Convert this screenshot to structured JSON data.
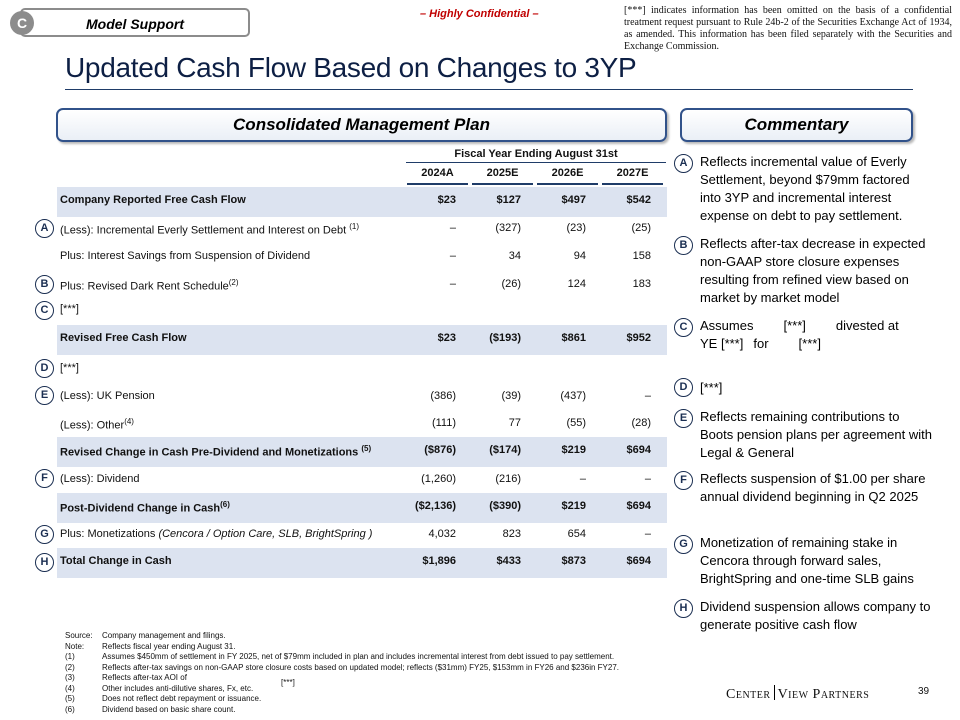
{
  "header": {
    "tab_letter": "C",
    "tab_label": "Model Support",
    "confidential": "– Highly Confidential –",
    "disclaimer": "[***] indicates information has been omitted on the basis of a confidential treatment request pursuant to Rule 24b-2 of the Securities Exchange Act of 1934, as amended. This information has been filed separately with the Securities and Exchange Commission."
  },
  "title": "Updated Cash Flow Based on Changes to 3YP",
  "plan": {
    "section_title": "Consolidated Management Plan",
    "fiscal_header": "Fiscal Year Ending August 31st",
    "columns": [
      "2024A",
      "2025E",
      "2026E",
      "2027E"
    ],
    "rows": [
      {
        "marker": "",
        "label": "Company Reported Free Cash Flow",
        "sup": "",
        "values": [
          "$23",
          "$127",
          "$497",
          "$542"
        ]
      },
      {
        "marker": "A",
        "label": "(Less): Incremental Everly Settlement and Interest on Debt",
        "sup": "(1)",
        "values": [
          "–",
          "(327)",
          "(23)",
          "(25)"
        ]
      },
      {
        "marker": "",
        "label": "Plus: Interest Savings from Suspension of Dividend",
        "sup": "",
        "values": [
          "–",
          "34",
          "94",
          "158"
        ]
      },
      {
        "marker": "B",
        "label": "Plus: Revised Dark Rent Schedule",
        "sup": "(2)",
        "values": [
          "–",
          "(26)",
          "124",
          "183"
        ]
      },
      {
        "marker": "C",
        "label": "[***]",
        "sup": "",
        "values": [
          "",
          "",
          "",
          ""
        ]
      },
      {
        "marker": "",
        "label": "Revised Free Cash Flow",
        "sup": "",
        "values": [
          "$23",
          "($193)",
          "$861",
          "$952"
        ]
      },
      {
        "marker": "D",
        "label": "[***]",
        "sup": "",
        "values": [
          "",
          "",
          "",
          ""
        ]
      },
      {
        "marker": "E",
        "label": "(Less): UK Pension",
        "sup": "",
        "values": [
          "(386)",
          "(39)",
          "(437)",
          "–"
        ]
      },
      {
        "marker": "",
        "label": "(Less): Other",
        "sup": "(4)",
        "values": [
          "(111)",
          "77",
          "(55)",
          "(28)"
        ]
      },
      {
        "marker": "",
        "label": "Revised Change in Cash Pre-Dividend and Monetizations",
        "sup": "(5)",
        "values": [
          "($876)",
          "($174)",
          "$219",
          "$694"
        ]
      },
      {
        "marker": "F",
        "label": "(Less): Dividend",
        "sup": "",
        "values": [
          "(1,260)",
          "(216)",
          "–",
          "–"
        ]
      },
      {
        "marker": "",
        "label": "Post-Dividend Change in Cash",
        "sup": "(6)",
        "values": [
          "($2,136)",
          "($390)",
          "$219",
          "$694"
        ]
      },
      {
        "marker": "G",
        "label": "Plus: Monetizations",
        "label_italic": "(Cencora / Option Care, SLB, BrightSpring )",
        "sup": "",
        "values": [
          "4,032",
          "823",
          "654",
          "–"
        ]
      },
      {
        "marker": "H",
        "label": "Total Change in Cash",
        "sup": "",
        "values": [
          "$1,896",
          "$433",
          "$873",
          "$694"
        ]
      }
    ]
  },
  "commentary": {
    "section_title": "Commentary",
    "items": [
      {
        "marker": "A",
        "text": "Reflects incremental value of Everly Settlement, beyond $79mm factored into 3YP and incremental interest expense on debt to pay settlement."
      },
      {
        "marker": "B",
        "text": "Reflects after-tax decrease in expected non-GAAP store closure expenses resulting from refined view based on market by market model"
      },
      {
        "marker": "C",
        "text_parts": [
          "Assumes",
          "[***]",
          "divested at",
          "YE [***]",
          "for",
          "[***]"
        ]
      },
      {
        "marker": "D",
        "text": "[***]"
      },
      {
        "marker": "E",
        "text": "Reflects remaining contributions to Boots pension plans per agreement with Legal & General"
      },
      {
        "marker": "F",
        "text": "Reflects suspension of $1.00 per share annual dividend beginning in Q2 2025"
      },
      {
        "marker": "G",
        "text": "Monetization of remaining stake in Cencora through forward sales, BrightSpring and one-time SLB gains"
      },
      {
        "marker": "H",
        "text": "Dividend suspension allows company to generate positive cash flow"
      }
    ]
  },
  "footnotes": [
    {
      "key": "Source:",
      "text": "Company management and filings."
    },
    {
      "key": "Note:",
      "text": "Reflects fiscal year ending August 31."
    },
    {
      "key": "(1)",
      "text": "Assumes $450mm of settlement in FY 2025, net of $79mm included in plan and includes incremental interest from debt issued to pay settlement."
    },
    {
      "key": "(2)",
      "text": "Reflects after-tax savings on non-GAAP store closure costs based on updated model; reflects ($31mm) FY25, $153mm in FY26 and $236in FY27."
    },
    {
      "key": "(3)",
      "text": "Reflects after-tax AOI of"
    },
    {
      "key": "(4)",
      "text": "Other includes anti-dilutive shares, Fx, etc."
    },
    {
      "key": "(5)",
      "text": "Does not reflect debt repayment or issuance."
    },
    {
      "key": "(6)",
      "text": "Dividend based on basic share count."
    }
  ],
  "footnote_redaction": "[***]",
  "brand": {
    "left": "Center",
    "right": "View Partners"
  },
  "page_number": "39"
}
